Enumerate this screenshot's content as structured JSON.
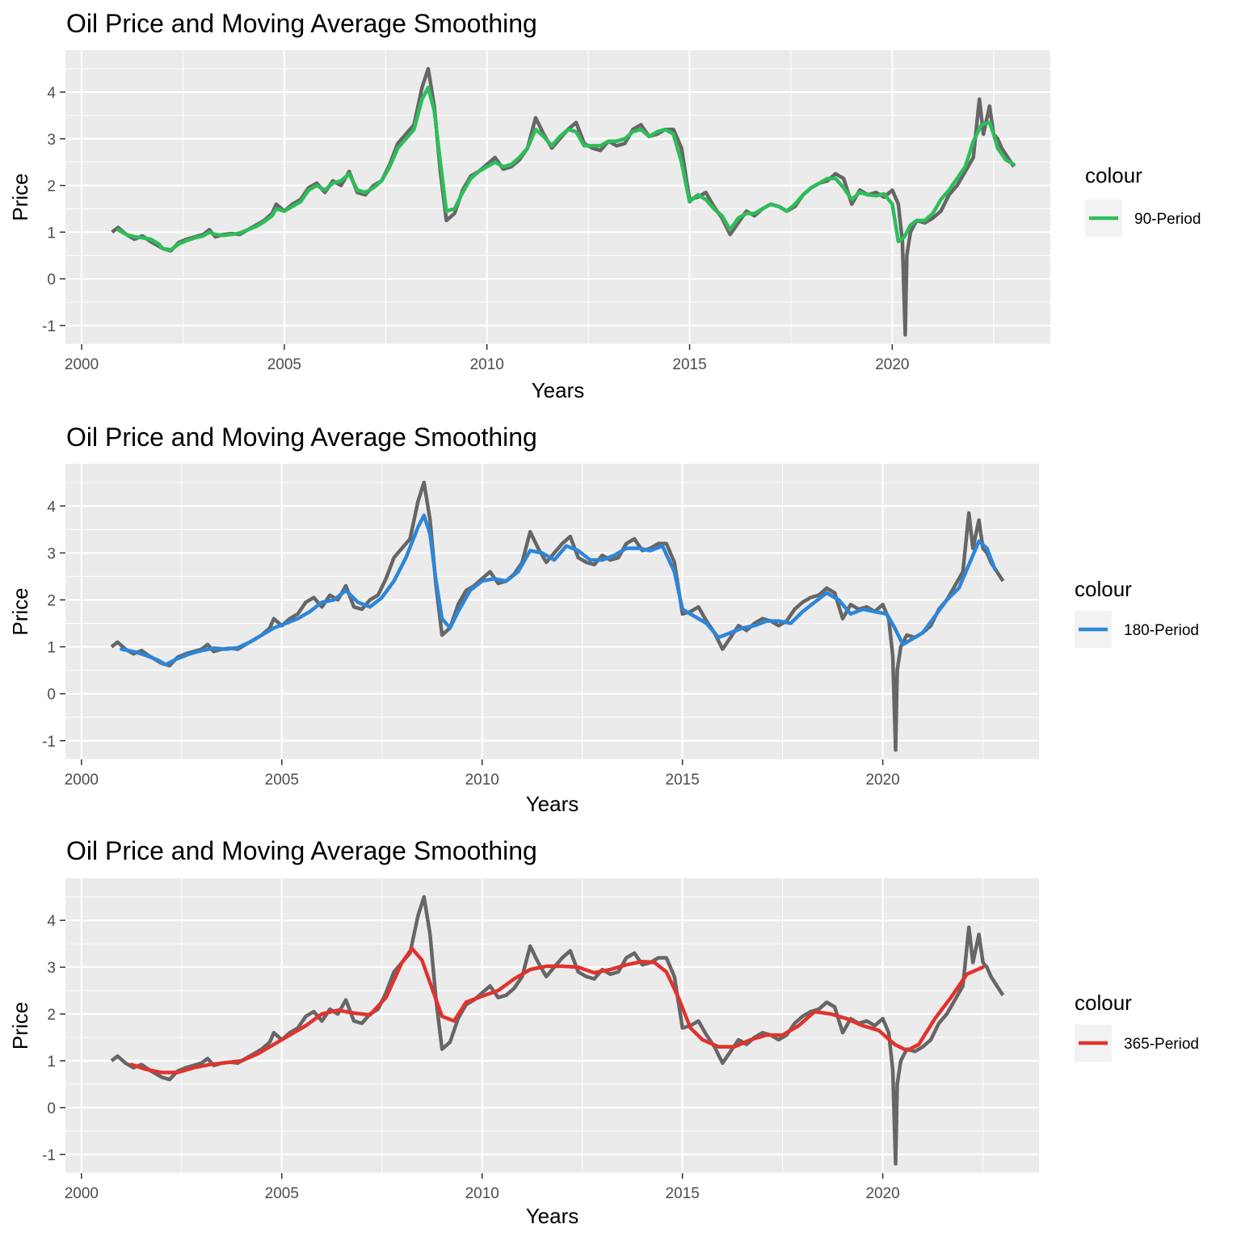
{
  "chart_data": [
    {
      "type": "line",
      "title": "Oil Price and Moving Average Smoothing",
      "xlabel": "Years",
      "ylabel": "Price",
      "xlim": [
        1999.6,
        2023.9
      ],
      "ylim": [
        -1.4,
        4.9
      ],
      "x_ticks": [
        2000,
        2005,
        2010,
        2015,
        2020
      ],
      "y_ticks": [
        -1,
        0,
        1,
        2,
        3,
        4
      ],
      "grid": true,
      "legend": {
        "title": "colour",
        "placement": "right"
      },
      "series": [
        {
          "role": "price",
          "color": "#666666",
          "x": [
            2000.75,
            2000.9,
            2001.1,
            2001.3,
            2001.5,
            2001.7,
            2001.9,
            2002.0,
            2002.2,
            2002.4,
            2002.6,
            2002.8,
            2003.0,
            2003.15,
            2003.3,
            2003.5,
            2003.7,
            2003.9,
            2004.1,
            2004.3,
            2004.5,
            2004.7,
            2004.8,
            2005.0,
            2005.2,
            2005.4,
            2005.6,
            2005.8,
            2006.0,
            2006.2,
            2006.4,
            2006.6,
            2006.8,
            2007.0,
            2007.2,
            2007.4,
            2007.6,
            2007.8,
            2008.0,
            2008.2,
            2008.4,
            2008.55,
            2008.7,
            2008.85,
            2009.0,
            2009.2,
            2009.4,
            2009.6,
            2009.8,
            2010.0,
            2010.2,
            2010.4,
            2010.6,
            2010.8,
            2011.0,
            2011.2,
            2011.4,
            2011.6,
            2011.8,
            2012.0,
            2012.2,
            2012.4,
            2012.6,
            2012.8,
            2013.0,
            2013.2,
            2013.4,
            2013.6,
            2013.8,
            2014.0,
            2014.2,
            2014.4,
            2014.6,
            2014.8,
            2015.0,
            2015.2,
            2015.4,
            2015.6,
            2015.8,
            2016.0,
            2016.2,
            2016.4,
            2016.6,
            2016.8,
            2017.0,
            2017.2,
            2017.4,
            2017.6,
            2017.8,
            2018.0,
            2018.2,
            2018.4,
            2018.6,
            2018.8,
            2019.0,
            2019.2,
            2019.4,
            2019.6,
            2019.8,
            2020.0,
            2020.15,
            2020.25,
            2020.32,
            2020.36,
            2020.45,
            2020.6,
            2020.8,
            2021.0,
            2021.2,
            2021.4,
            2021.6,
            2021.8,
            2022.0,
            2022.15,
            2022.25,
            2022.4,
            2022.5,
            2022.6,
            2022.7,
            2022.85,
            2023.0
          ],
          "values": [
            1.0,
            1.1,
            0.95,
            0.85,
            0.92,
            0.8,
            0.7,
            0.65,
            0.6,
            0.78,
            0.85,
            0.9,
            0.95,
            1.05,
            0.9,
            0.95,
            0.97,
            0.95,
            1.05,
            1.15,
            1.25,
            1.4,
            1.6,
            1.45,
            1.6,
            1.7,
            1.95,
            2.05,
            1.85,
            2.1,
            2.0,
            2.3,
            1.85,
            1.8,
            2.0,
            2.1,
            2.45,
            2.9,
            3.1,
            3.3,
            4.1,
            4.5,
            3.7,
            2.3,
            1.25,
            1.4,
            1.9,
            2.2,
            2.3,
            2.45,
            2.6,
            2.35,
            2.4,
            2.55,
            2.8,
            3.45,
            3.1,
            2.8,
            3.0,
            3.2,
            3.35,
            2.9,
            2.8,
            2.75,
            2.95,
            2.85,
            2.9,
            3.2,
            3.3,
            3.05,
            3.1,
            3.2,
            3.2,
            2.8,
            1.7,
            1.75,
            1.85,
            1.55,
            1.3,
            0.95,
            1.2,
            1.45,
            1.35,
            1.5,
            1.6,
            1.55,
            1.45,
            1.55,
            1.8,
            1.95,
            2.05,
            2.1,
            2.25,
            2.15,
            1.6,
            1.9,
            1.8,
            1.85,
            1.75,
            1.9,
            1.6,
            0.8,
            -1.2,
            0.5,
            1.0,
            1.25,
            1.2,
            1.3,
            1.45,
            1.8,
            2.0,
            2.3,
            2.6,
            3.85,
            3.1,
            3.7,
            3.1,
            3.0,
            2.8,
            2.6,
            2.4
          ]
        }
      ],
      "smoothing_series": {
        "name": "90-Period",
        "color": "#2ebd59",
        "x": [
          2000.9,
          2001.1,
          2001.3,
          2001.5,
          2001.7,
          2001.9,
          2002.0,
          2002.2,
          2002.4,
          2002.6,
          2002.8,
          2003.0,
          2003.15,
          2003.3,
          2003.5,
          2003.7,
          2003.9,
          2004.1,
          2004.3,
          2004.5,
          2004.7,
          2004.8,
          2005.0,
          2005.2,
          2005.4,
          2005.6,
          2005.8,
          2006.0,
          2006.2,
          2006.4,
          2006.6,
          2006.8,
          2007.0,
          2007.2,
          2007.4,
          2007.6,
          2007.8,
          2008.0,
          2008.2,
          2008.4,
          2008.55,
          2008.7,
          2008.85,
          2009.0,
          2009.2,
          2009.4,
          2009.6,
          2009.8,
          2010.0,
          2010.2,
          2010.4,
          2010.6,
          2010.8,
          2011.0,
          2011.2,
          2011.4,
          2011.6,
          2011.8,
          2012.0,
          2012.2,
          2012.4,
          2012.6,
          2012.8,
          2013.0,
          2013.2,
          2013.4,
          2013.6,
          2013.8,
          2014.0,
          2014.2,
          2014.4,
          2014.6,
          2014.8,
          2015.0,
          2015.2,
          2015.4,
          2015.6,
          2015.8,
          2016.0,
          2016.2,
          2016.4,
          2016.6,
          2016.8,
          2017.0,
          2017.2,
          2017.4,
          2017.6,
          2017.8,
          2018.0,
          2018.2,
          2018.4,
          2018.6,
          2018.8,
          2019.0,
          2019.2,
          2019.4,
          2019.6,
          2019.8,
          2020.0,
          2020.15,
          2020.3,
          2020.45,
          2020.6,
          2020.8,
          2021.0,
          2021.2,
          2021.4,
          2021.6,
          2021.8,
          2022.0,
          2022.2,
          2022.4,
          2022.5,
          2022.6,
          2022.8,
          2023.0
        ],
        "values": [
          1.05,
          0.95,
          0.9,
          0.88,
          0.85,
          0.75,
          0.65,
          0.62,
          0.75,
          0.82,
          0.88,
          0.92,
          1.0,
          0.95,
          0.93,
          0.95,
          0.98,
          1.05,
          1.12,
          1.22,
          1.35,
          1.5,
          1.45,
          1.55,
          1.65,
          1.9,
          2.0,
          1.9,
          2.05,
          2.1,
          2.25,
          1.9,
          1.85,
          1.95,
          2.1,
          2.4,
          2.8,
          3.0,
          3.2,
          3.85,
          4.1,
          3.6,
          2.5,
          1.45,
          1.5,
          1.85,
          2.15,
          2.3,
          2.4,
          2.5,
          2.4,
          2.45,
          2.6,
          2.8,
          3.2,
          3.05,
          2.85,
          3.05,
          3.2,
          3.15,
          2.85,
          2.85,
          2.85,
          2.95,
          2.95,
          3.0,
          3.15,
          3.2,
          3.05,
          3.15,
          3.2,
          3.1,
          2.5,
          1.65,
          1.8,
          1.7,
          1.5,
          1.35,
          1.05,
          1.3,
          1.4,
          1.4,
          1.5,
          1.6,
          1.55,
          1.45,
          1.6,
          1.8,
          1.95,
          2.05,
          2.15,
          2.15,
          1.95,
          1.7,
          1.85,
          1.8,
          1.78,
          1.82,
          1.6,
          0.8,
          0.9,
          1.15,
          1.25,
          1.25,
          1.4,
          1.7,
          1.9,
          2.15,
          2.4,
          2.95,
          3.3,
          3.35,
          3.1,
          2.8,
          2.55,
          2.45
        ]
      }
    },
    {
      "type": "line",
      "title": "Oil Price and Moving Average Smoothing",
      "xlabel": "Years",
      "ylabel": "Price",
      "xlim": [
        1999.6,
        2023.9
      ],
      "ylim": [
        -1.4,
        4.9
      ],
      "x_ticks": [
        2000,
        2005,
        2010,
        2015,
        2020
      ],
      "y_ticks": [
        -1,
        0,
        1,
        2,
        3,
        4
      ],
      "grid": true,
      "legend": {
        "title": "colour",
        "placement": "right"
      },
      "series": [
        {
          "role": "price",
          "color": "#666666",
          "same_as_panel": 0
        }
      ],
      "smoothing_series": {
        "name": "180-Period",
        "color": "#2d86d8",
        "x": [
          2001.0,
          2001.3,
          2001.6,
          2001.9,
          2002.1,
          2002.4,
          2002.7,
          2003.0,
          2003.3,
          2003.6,
          2003.9,
          2004.2,
          2004.5,
          2004.8,
          2005.1,
          2005.4,
          2005.7,
          2006.0,
          2006.3,
          2006.6,
          2006.9,
          2007.2,
          2007.5,
          2007.8,
          2008.1,
          2008.4,
          2008.55,
          2008.7,
          2008.85,
          2009.0,
          2009.2,
          2009.4,
          2009.7,
          2010.0,
          2010.3,
          2010.6,
          2010.9,
          2011.2,
          2011.5,
          2011.8,
          2012.1,
          2012.4,
          2012.7,
          2013.0,
          2013.3,
          2013.6,
          2013.9,
          2014.2,
          2014.5,
          2014.8,
          2015.0,
          2015.3,
          2015.6,
          2015.9,
          2016.2,
          2016.5,
          2016.8,
          2017.1,
          2017.4,
          2017.7,
          2018.0,
          2018.3,
          2018.6,
          2018.9,
          2019.2,
          2019.5,
          2019.8,
          2020.1,
          2020.3,
          2020.5,
          2020.7,
          2021.0,
          2021.3,
          2021.6,
          2021.9,
          2022.2,
          2022.4,
          2022.6,
          2022.8
        ],
        "values": [
          0.95,
          0.9,
          0.82,
          0.72,
          0.62,
          0.75,
          0.85,
          0.92,
          0.97,
          0.95,
          0.98,
          1.1,
          1.25,
          1.4,
          1.5,
          1.6,
          1.75,
          1.95,
          2.0,
          2.2,
          1.95,
          1.85,
          2.05,
          2.4,
          2.9,
          3.55,
          3.8,
          3.4,
          2.4,
          1.6,
          1.4,
          1.75,
          2.2,
          2.4,
          2.45,
          2.4,
          2.6,
          3.05,
          3.0,
          2.85,
          3.15,
          3.05,
          2.85,
          2.85,
          2.95,
          3.1,
          3.1,
          3.05,
          3.15,
          2.6,
          1.8,
          1.65,
          1.5,
          1.2,
          1.3,
          1.4,
          1.45,
          1.55,
          1.55,
          1.5,
          1.75,
          1.95,
          2.15,
          2.0,
          1.7,
          1.8,
          1.75,
          1.7,
          1.4,
          1.05,
          1.15,
          1.3,
          1.65,
          2.0,
          2.25,
          2.85,
          3.25,
          3.1,
          2.65
        ]
      }
    },
    {
      "type": "line",
      "title": "Oil Price and Moving Average Smoothing",
      "xlabel": "Years",
      "ylabel": "Price",
      "xlim": [
        1999.6,
        2023.9
      ],
      "ylim": [
        -1.4,
        4.9
      ],
      "x_ticks": [
        2000,
        2005,
        2010,
        2015,
        2020
      ],
      "y_ticks": [
        -1,
        0,
        1,
        2,
        3,
        4
      ],
      "grid": true,
      "legend": {
        "title": "colour",
        "placement": "right"
      },
      "series": [
        {
          "role": "price",
          "color": "#666666",
          "same_as_panel": 0
        }
      ],
      "smoothing_series": {
        "name": "365-Period",
        "color": "#e0332e",
        "x": [
          2001.25,
          2001.6,
          2002.0,
          2002.4,
          2002.8,
          2003.2,
          2003.6,
          2004.0,
          2004.4,
          2004.8,
          2005.2,
          2005.6,
          2006.0,
          2006.4,
          2006.8,
          2007.2,
          2007.6,
          2008.0,
          2008.25,
          2008.5,
          2008.75,
          2009.0,
          2009.3,
          2009.6,
          2010.0,
          2010.4,
          2010.8,
          2011.2,
          2011.6,
          2012.0,
          2012.4,
          2012.8,
          2013.2,
          2013.6,
          2014.0,
          2014.3,
          2014.6,
          2014.9,
          2015.2,
          2015.5,
          2015.9,
          2016.3,
          2016.7,
          2017.1,
          2017.5,
          2017.9,
          2018.3,
          2018.7,
          2019.1,
          2019.5,
          2019.9,
          2020.3,
          2020.6,
          2020.9,
          2021.3,
          2021.7,
          2022.1,
          2022.5
        ],
        "values": [
          0.92,
          0.82,
          0.75,
          0.75,
          0.85,
          0.92,
          0.96,
          1.0,
          1.15,
          1.35,
          1.55,
          1.75,
          2.0,
          2.08,
          2.02,
          1.98,
          2.35,
          3.1,
          3.4,
          3.15,
          2.55,
          1.95,
          1.85,
          2.25,
          2.38,
          2.5,
          2.75,
          2.95,
          3.02,
          3.02,
          3.0,
          2.88,
          2.95,
          3.05,
          3.12,
          3.1,
          2.9,
          2.35,
          1.7,
          1.45,
          1.3,
          1.3,
          1.45,
          1.55,
          1.55,
          1.75,
          2.05,
          2.0,
          1.9,
          1.75,
          1.65,
          1.35,
          1.22,
          1.35,
          1.9,
          2.35,
          2.85,
          3.0
        ]
      }
    }
  ]
}
